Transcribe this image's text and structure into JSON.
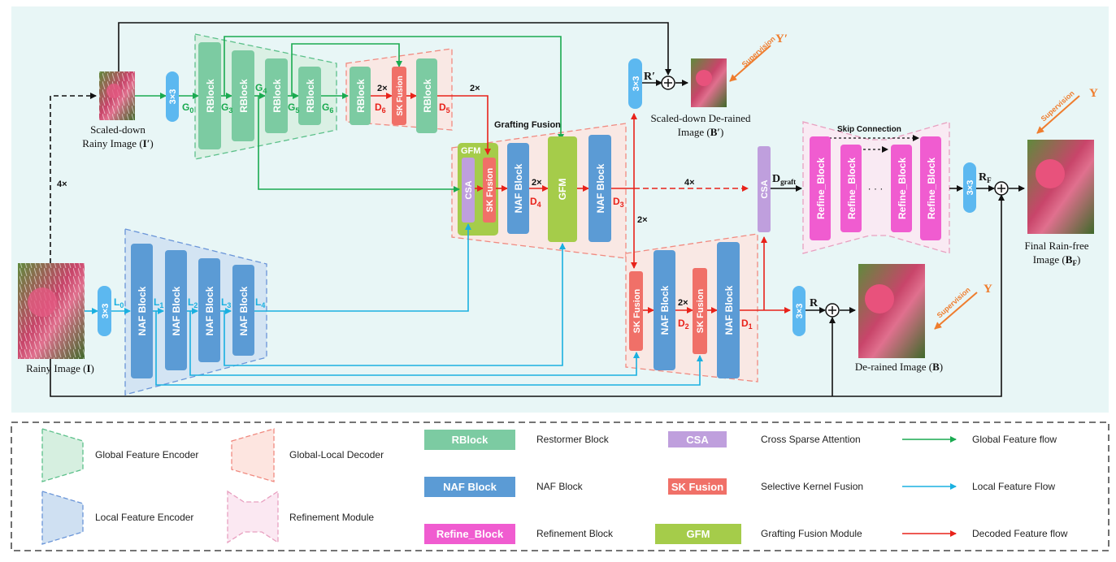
{
  "colors": {
    "panel_bg": "#e8f6f6",
    "rblock": "#7ccba2",
    "naf": "#5b9bd5",
    "refine": "#f05cd0",
    "csa": "#bf9fdd",
    "sk": "#f07068",
    "gfm": "#a5cc4a",
    "conv": "#5cb8f0",
    "global_flow": "#1aaa50",
    "local_flow": "#1ab0e0",
    "decoded_flow": "#e8221a",
    "orange": "#ef7d2e"
  },
  "images": {
    "scaled_down_rainy": {
      "line1": "Scaled-down",
      "line2": "Rainy Image (",
      "sym": "I′",
      "close": ")"
    },
    "rainy": {
      "line1": "Rainy Image (",
      "sym": "I",
      "close": ")"
    },
    "scaled_down_derained": {
      "line1": "Scaled-down De-rained",
      "line2": "Image (",
      "sym": "B′",
      "close": ")"
    },
    "derained": {
      "line1": "De-rained Image (",
      "sym": "B",
      "close": ")"
    },
    "final": {
      "line1": "Final Rain-free",
      "line2": "Image (",
      "sym": "B",
      "sub": "F",
      "close": ")"
    }
  },
  "blocks": {
    "conv": "3×3",
    "rblock": "RBlock",
    "naf": "NAF Block",
    "sk": "SK Fusion",
    "csa": "CSA",
    "gfm": "GFM",
    "refine": "Refine_Block"
  },
  "labels": {
    "G0": "G",
    "G0s": "0",
    "G3": "G",
    "G3s": "3",
    "G4": "G",
    "G4s": "4",
    "G5": "G",
    "G5s": "5",
    "G6": "G",
    "G6s": "6",
    "L0": "L",
    "L0s": "0",
    "L1": "L",
    "L1s": "1",
    "L2": "L",
    "L2s": "2",
    "L3": "L",
    "L3s": "3",
    "L4": "L",
    "L4s": "4",
    "D6": "D",
    "D6s": "6",
    "D5": "D",
    "D5s": "5",
    "D4": "D",
    "D4s": "4",
    "D3": "D",
    "D3s": "3",
    "D2": "D",
    "D2s": "2",
    "D1": "D",
    "D1s": "1",
    "scale_2x": "2×",
    "scale_4x": "4×",
    "grafting_fusion": "Grafting Fusion",
    "skip_connection": "Skip Connection",
    "dots": "· · ·",
    "gfm_box": "GFM",
    "R_prime": "R′",
    "R": "R",
    "RF": "R",
    "RF_sub": "F",
    "D_graft": "D",
    "D_graft_sub": "graft",
    "supervision": "Supervision",
    "Y_prime": "Y′",
    "Y": "Y",
    "plus": "+"
  },
  "legend": {
    "global_feature_encoder": "Global Feature Encoder",
    "global_local_decoder": "Global-Local Decoder",
    "local_feature_encoder": "Local Feature Encoder",
    "refinement_module": "Refinement Module",
    "rblock_chip": "RBlock",
    "rblock_desc": "Restormer Block",
    "naf_chip": "NAF Block",
    "naf_desc": "NAF Block",
    "refine_chip": "Refine_Block",
    "refine_desc": "Refinement Block",
    "csa_chip": "CSA",
    "csa_desc": "Cross Sparse Attention",
    "sk_chip": "SK Fusion",
    "sk_desc": "Selective Kernel Fusion",
    "gfm_chip": "GFM",
    "gfm_desc": "Grafting Fusion Module",
    "global_flow": "Global Feature flow",
    "local_flow": "Local Feature Flow",
    "decoded_flow": "Decoded Feature flow"
  }
}
